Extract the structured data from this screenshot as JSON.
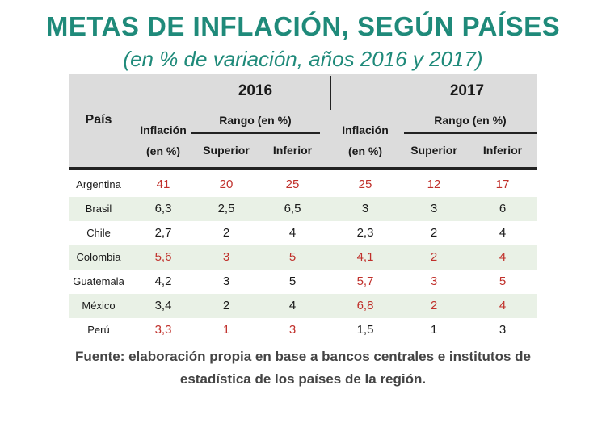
{
  "title": "METAS DE INFLACIÓN, SEGÚN PAÍSES",
  "subtitle": "(en % de variación, años 2016 y 2017)",
  "table": {
    "header": {
      "country": "País",
      "years": [
        "2016",
        "2017"
      ],
      "inflation_line1": "Inflación",
      "inflation_line2": "(en %)",
      "range": "Rango (en %)",
      "upper": "Superior",
      "lower": "Inferior"
    },
    "rows": [
      {
        "country": "Argentina",
        "values": [
          "41",
          "20",
          "25",
          "25",
          "12",
          "17"
        ],
        "highlight": [
          true,
          true,
          true,
          true,
          true,
          true
        ]
      },
      {
        "country": "Brasil",
        "values": [
          "6,3",
          "2,5",
          "6,5",
          "3",
          "3",
          "6"
        ],
        "highlight": [
          false,
          false,
          false,
          false,
          false,
          false
        ]
      },
      {
        "country": "Chile",
        "values": [
          "2,7",
          "2",
          "4",
          "2,3",
          "2",
          "4"
        ],
        "highlight": [
          false,
          false,
          false,
          false,
          false,
          false
        ]
      },
      {
        "country": "Colombia",
        "values": [
          "5,6",
          "3",
          "5",
          "4,1",
          "2",
          "4"
        ],
        "highlight": [
          true,
          true,
          true,
          true,
          true,
          true
        ]
      },
      {
        "country": "Guatemala",
        "values": [
          "4,2",
          "3",
          "5",
          "5,7",
          "3",
          "5"
        ],
        "highlight": [
          false,
          false,
          false,
          true,
          true,
          true
        ]
      },
      {
        "country": "México",
        "values": [
          "3,4",
          "2",
          "4",
          "6,8",
          "2",
          "4"
        ],
        "highlight": [
          false,
          false,
          false,
          true,
          true,
          true
        ]
      },
      {
        "country": "Perú",
        "values": [
          "3,3",
          "1",
          "3",
          "1,5",
          "1",
          "3"
        ],
        "highlight": [
          true,
          true,
          true,
          false,
          false,
          false
        ]
      }
    ]
  },
  "source": {
    "line1": "Fuente: elaboración propia en base a bancos centrales e institutos de",
    "line2": "estadística de los países de la región."
  },
  "colors": {
    "accent": "#1f8a7a",
    "highlight_text": "#c0302b",
    "row_alt": "#e9f1e6",
    "header_bg": "#dcdcdc"
  }
}
